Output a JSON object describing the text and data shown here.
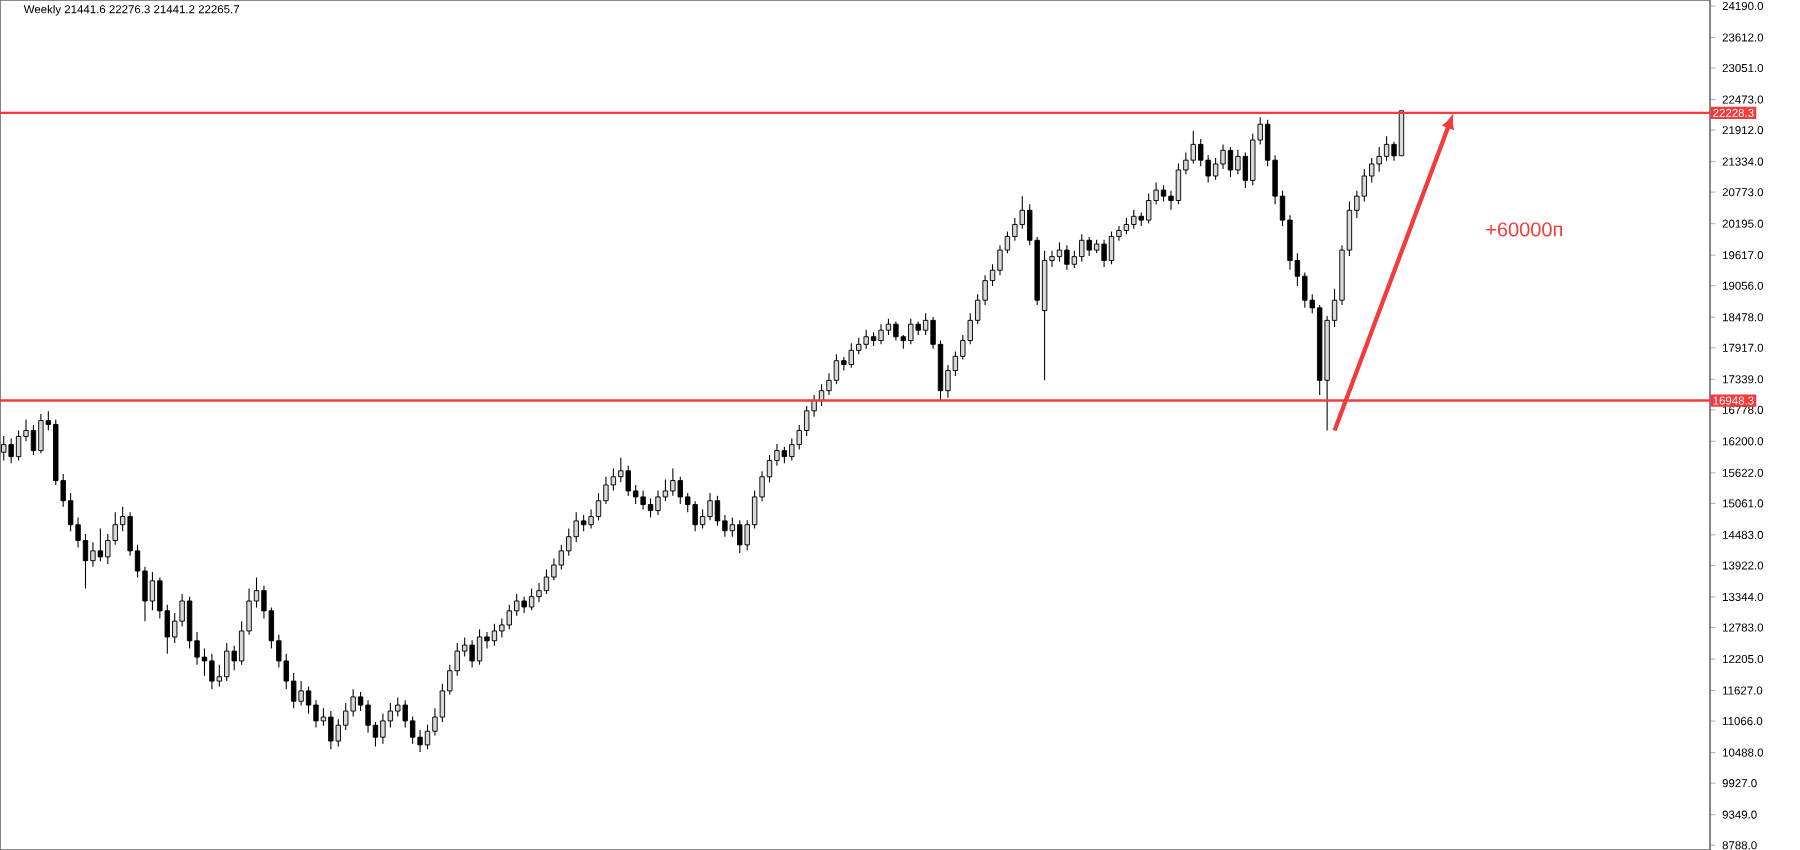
{
  "chart_data": {
    "type": "candlestick",
    "title": "Weekly 21441.6 22276.3 21441.2 22265.7",
    "categories": [
      null,
      null,
      null,
      null,
      null,
      null,
      null,
      null,
      null,
      null,
      null,
      null,
      null,
      null,
      null,
      null,
      null,
      null,
      null,
      null,
      null,
      null,
      null,
      null,
      null,
      null,
      null,
      null,
      null,
      null,
      null,
      null,
      null,
      null,
      null,
      null,
      null,
      null,
      null,
      null,
      null,
      null,
      null,
      null,
      null,
      null,
      null,
      null,
      null,
      null,
      null,
      null,
      null,
      null,
      null,
      null,
      null,
      null,
      null,
      null,
      null,
      null,
      null,
      null,
      null,
      null,
      null,
      null,
      null,
      null,
      null,
      null,
      null,
      null,
      null,
      null,
      null,
      null,
      null,
      null,
      null,
      null,
      null,
      null,
      null,
      null,
      null,
      null,
      null,
      null,
      null,
      null,
      null,
      null,
      null,
      null,
      null,
      null,
      null,
      null,
      null,
      null,
      null,
      null,
      null,
      null,
      null,
      null,
      null,
      null,
      null,
      null,
      null,
      null,
      null,
      null,
      null,
      null,
      null,
      null,
      null,
      null,
      null,
      null,
      null,
      null,
      null,
      null,
      null,
      null,
      null,
      null,
      null,
      null,
      null,
      null,
      null,
      null,
      null,
      null,
      null,
      null,
      null,
      null,
      null,
      null,
      null,
      null,
      null,
      null,
      null,
      null,
      null,
      null,
      null,
      null,
      null,
      null,
      null,
      null,
      null,
      null,
      null,
      null,
      null,
      null,
      null,
      null,
      null,
      null,
      null,
      null,
      null,
      null,
      null,
      null,
      null,
      null,
      null,
      null,
      null,
      null,
      null,
      null,
      null,
      null,
      null,
      null,
      null,
      null,
      null,
      null,
      null,
      null,
      null,
      null,
      null,
      null,
      null,
      null,
      null,
      null,
      null,
      null,
      null,
      null,
      null,
      null,
      null,
      null,
      null,
      null,
      null,
      null,
      null,
      null,
      null,
      null,
      null,
      null,
      null,
      null,
      null,
      null,
      null,
      null,
      null,
      null,
      null,
      null
    ],
    "ohlc": [
      [
        16000,
        16300,
        15850,
        16140
      ],
      [
        16140,
        16250,
        15800,
        15920
      ],
      [
        15920,
        16400,
        15850,
        16290
      ],
      [
        16290,
        16600,
        16200,
        16400
      ],
      [
        16400,
        16500,
        15950,
        16030
      ],
      [
        16030,
        16700,
        15980,
        16580
      ],
      [
        16580,
        16750,
        16400,
        16510
      ],
      [
        16510,
        16600,
        15400,
        15480
      ],
      [
        15480,
        15600,
        15000,
        15110
      ],
      [
        15110,
        15250,
        14550,
        14670
      ],
      [
        14670,
        14800,
        14250,
        14380
      ],
      [
        14380,
        14500,
        13500,
        14010
      ],
      [
        14010,
        14350,
        13900,
        14190
      ],
      [
        14190,
        14600,
        14000,
        14080
      ],
      [
        14080,
        14500,
        13950,
        14380
      ],
      [
        14380,
        14900,
        14300,
        14670
      ],
      [
        14670,
        15000,
        14550,
        14820
      ],
      [
        14820,
        14900,
        14100,
        14190
      ],
      [
        14190,
        14300,
        13700,
        13820
      ],
      [
        13820,
        13900,
        12900,
        13270
      ],
      [
        13270,
        13800,
        13100,
        13640
      ],
      [
        13640,
        13700,
        12950,
        13090
      ],
      [
        13090,
        13200,
        12300,
        12610
      ],
      [
        12610,
        13050,
        12500,
        12900
      ],
      [
        12900,
        13400,
        12800,
        13270
      ],
      [
        13270,
        13350,
        12400,
        12540
      ],
      [
        12540,
        12700,
        12100,
        12240
      ],
      [
        12240,
        12400,
        11900,
        12170
      ],
      [
        12170,
        12300,
        11650,
        11800
      ],
      [
        11800,
        12100,
        11700,
        11880
      ],
      [
        11880,
        12500,
        11800,
        12350
      ],
      [
        12350,
        12450,
        12000,
        12170
      ],
      [
        12170,
        12900,
        12100,
        12720
      ],
      [
        12720,
        13500,
        12650,
        13270
      ],
      [
        13270,
        13700,
        13150,
        13460
      ],
      [
        13460,
        13550,
        12950,
        13090
      ],
      [
        13090,
        13150,
        12400,
        12540
      ],
      [
        12540,
        12650,
        12050,
        12170
      ],
      [
        12170,
        12300,
        11650,
        11800
      ],
      [
        11800,
        11950,
        11300,
        11430
      ],
      [
        11430,
        11800,
        11350,
        11620
      ],
      [
        11620,
        11700,
        11200,
        11360
      ],
      [
        11360,
        11450,
        10950,
        11070
      ],
      [
        11070,
        11300,
        10980,
        11140
      ],
      [
        11140,
        11250,
        10550,
        10700
      ],
      [
        10700,
        11100,
        10600,
        10990
      ],
      [
        10990,
        11400,
        10900,
        11250
      ],
      [
        11250,
        11650,
        11150,
        11510
      ],
      [
        11510,
        11600,
        11250,
        11360
      ],
      [
        11360,
        11450,
        10850,
        10990
      ],
      [
        10990,
        11050,
        10600,
        10770
      ],
      [
        10770,
        11200,
        10650,
        11070
      ],
      [
        11070,
        11400,
        10950,
        11250
      ],
      [
        11250,
        11500,
        11150,
        11360
      ],
      [
        11360,
        11450,
        10950,
        11070
      ],
      [
        11070,
        11150,
        10650,
        10770
      ],
      [
        10770,
        10900,
        10500,
        10630
      ],
      [
        10630,
        11000,
        10550,
        10880
      ],
      [
        10880,
        11300,
        10800,
        11140
      ],
      [
        11140,
        11750,
        11050,
        11620
      ],
      [
        11620,
        12100,
        11550,
        11990
      ],
      [
        11990,
        12500,
        11900,
        12350
      ],
      [
        12350,
        12600,
        12250,
        12460
      ],
      [
        12460,
        12550,
        12050,
        12170
      ],
      [
        12170,
        12750,
        12100,
        12610
      ],
      [
        12610,
        12700,
        12400,
        12540
      ],
      [
        12540,
        12850,
        12450,
        12720
      ],
      [
        12720,
        12950,
        12600,
        12830
      ],
      [
        12830,
        13200,
        12750,
        13090
      ],
      [
        13090,
        13400,
        13000,
        13270
      ],
      [
        13270,
        13350,
        13050,
        13160
      ],
      [
        13160,
        13500,
        13100,
        13350
      ],
      [
        13350,
        13600,
        13250,
        13460
      ],
      [
        13460,
        13850,
        13400,
        13710
      ],
      [
        13710,
        14050,
        13650,
        13930
      ],
      [
        13930,
        14300,
        13850,
        14190
      ],
      [
        14190,
        14600,
        14100,
        14450
      ],
      [
        14450,
        14900,
        14350,
        14740
      ],
      [
        14740,
        14850,
        14550,
        14670
      ],
      [
        14670,
        14950,
        14600,
        14820
      ],
      [
        14820,
        15250,
        14750,
        15110
      ],
      [
        15110,
        15550,
        15050,
        15400
      ],
      [
        15400,
        15700,
        15300,
        15550
      ],
      [
        15550,
        15900,
        15450,
        15660
      ],
      [
        15660,
        15750,
        15200,
        15290
      ],
      [
        15290,
        15400,
        15050,
        15180
      ],
      [
        15180,
        15300,
        14950,
        15040
      ],
      [
        15040,
        15150,
        14800,
        14930
      ],
      [
        14930,
        15300,
        14850,
        15180
      ],
      [
        15180,
        15500,
        15100,
        15290
      ],
      [
        15290,
        15700,
        15200,
        15480
      ],
      [
        15480,
        15550,
        15050,
        15180
      ],
      [
        15180,
        15250,
        14900,
        15040
      ],
      [
        15040,
        15100,
        14550,
        14670
      ],
      [
        14670,
        14950,
        14600,
        14820
      ],
      [
        14820,
        15250,
        14750,
        15110
      ],
      [
        15110,
        15200,
        14650,
        14740
      ],
      [
        14740,
        14850,
        14450,
        14560
      ],
      [
        14560,
        14800,
        14450,
        14670
      ],
      [
        14670,
        14750,
        14150,
        14300
      ],
      [
        14300,
        14750,
        14200,
        14670
      ],
      [
        14670,
        15300,
        14600,
        15180
      ],
      [
        15180,
        15650,
        15100,
        15550
      ],
      [
        15550,
        15950,
        15450,
        15850
      ],
      [
        15850,
        16150,
        15750,
        16030
      ],
      [
        16030,
        16100,
        15800,
        15920
      ],
      [
        15920,
        16250,
        15850,
        16140
      ],
      [
        16140,
        16500,
        16050,
        16400
      ],
      [
        16400,
        16850,
        16300,
        16760
      ],
      [
        16760,
        17050,
        16650,
        16950
      ],
      [
        16950,
        17250,
        16850,
        17130
      ],
      [
        17130,
        17450,
        17050,
        17320
      ],
      [
        17320,
        17800,
        17250,
        17680
      ],
      [
        17680,
        17750,
        17500,
        17610
      ],
      [
        17610,
        18000,
        17550,
        17870
      ],
      [
        17870,
        18100,
        17800,
        17980
      ],
      [
        17980,
        18250,
        17900,
        18120
      ],
      [
        18120,
        18200,
        17950,
        18050
      ],
      [
        18050,
        18350,
        17980,
        18240
      ],
      [
        18240,
        18450,
        18150,
        18350
      ],
      [
        18350,
        18400,
        18050,
        18120
      ],
      [
        18120,
        18150,
        17900,
        18050
      ],
      [
        18050,
        18450,
        17980,
        18350
      ],
      [
        18350,
        18400,
        18150,
        18240
      ],
      [
        18240,
        18550,
        18150,
        18420
      ],
      [
        18420,
        18480,
        17900,
        17980
      ],
      [
        17980,
        18050,
        16950,
        17130
      ],
      [
        17130,
        17600,
        17000,
        17500
      ],
      [
        17500,
        17850,
        17400,
        17760
      ],
      [
        17760,
        18150,
        17700,
        18050
      ],
      [
        18050,
        18550,
        17980,
        18420
      ],
      [
        18420,
        18900,
        18350,
        18790
      ],
      [
        18790,
        19250,
        18700,
        19150
      ],
      [
        19150,
        19450,
        19050,
        19340
      ],
      [
        19340,
        19800,
        19250,
        19710
      ],
      [
        19710,
        20050,
        19650,
        19960
      ],
      [
        19960,
        20300,
        19880,
        20180
      ],
      [
        20180,
        20700,
        20100,
        20440
      ],
      [
        20440,
        20550,
        19800,
        19890
      ],
      [
        19890,
        19950,
        18700,
        18790
      ],
      [
        18600,
        19700,
        17320,
        19520
      ],
      [
        19520,
        19700,
        19400,
        19590
      ],
      [
        19590,
        19850,
        19500,
        19710
      ],
      [
        19710,
        19800,
        19350,
        19450
      ],
      [
        19450,
        19700,
        19380,
        19590
      ],
      [
        19590,
        20000,
        19500,
        19890
      ],
      [
        19890,
        19950,
        19600,
        19710
      ],
      [
        19710,
        19900,
        19650,
        19820
      ],
      [
        19820,
        19900,
        19400,
        19520
      ],
      [
        19520,
        20050,
        19450,
        19960
      ],
      [
        19960,
        20150,
        19880,
        20070
      ],
      [
        20070,
        20300,
        20000,
        20180
      ],
      [
        20180,
        20450,
        20100,
        20330
      ],
      [
        20330,
        20400,
        20150,
        20260
      ],
      [
        20260,
        20750,
        20200,
        20620
      ],
      [
        20620,
        20950,
        20550,
        20810
      ],
      [
        20810,
        20900,
        20600,
        20700
      ],
      [
        20700,
        20800,
        20450,
        20620
      ],
      [
        20620,
        21300,
        20550,
        21180
      ],
      [
        21180,
        21500,
        21100,
        21360
      ],
      [
        21360,
        21900,
        21300,
        21650
      ],
      [
        21650,
        21750,
        21250,
        21360
      ],
      [
        21360,
        21450,
        20950,
        21070
      ],
      [
        21070,
        21400,
        21000,
        21290
      ],
      [
        21290,
        21650,
        21200,
        21540
      ],
      [
        21540,
        21600,
        21050,
        21180
      ],
      [
        21180,
        21550,
        21100,
        21430
      ],
      [
        21430,
        21500,
        20850,
        20990
      ],
      [
        20990,
        21850,
        20900,
        21730
      ],
      [
        21730,
        22150,
        21650,
        22020
      ],
      [
        22020,
        22100,
        21250,
        21360
      ],
      [
        21360,
        21450,
        20550,
        20700
      ],
      [
        20700,
        20800,
        20150,
        20260
      ],
      [
        20260,
        20350,
        19350,
        19520
      ],
      [
        19520,
        19650,
        19050,
        19230
      ],
      [
        19230,
        19300,
        18650,
        18790
      ],
      [
        18790,
        18900,
        18550,
        18650
      ],
      [
        18650,
        18700,
        17050,
        17320
      ],
      [
        17320,
        18500,
        16400,
        18420
      ],
      [
        18420,
        19000,
        18300,
        18790
      ],
      [
        18790,
        19800,
        18700,
        19710
      ],
      [
        19710,
        20600,
        19600,
        20440
      ],
      [
        20440,
        20800,
        20300,
        20700
      ],
      [
        20700,
        21200,
        20600,
        21070
      ],
      [
        21070,
        21400,
        20950,
        21290
      ],
      [
        21290,
        21600,
        21150,
        21430
      ],
      [
        21430,
        21800,
        21350,
        21650
      ],
      [
        21650,
        21700,
        21350,
        21440
      ],
      [
        21441.6,
        22276.3,
        21441.2,
        22265.7
      ],
      null,
      null,
      null,
      null,
      null,
      null,
      null,
      null,
      null,
      null,
      null,
      null,
      null,
      null,
      null,
      null,
      null,
      null,
      null,
      null,
      null,
      null,
      null,
      null,
      null,
      null,
      null,
      null,
      null,
      null,
      null,
      null,
      null,
      null,
      null,
      null,
      null,
      null,
      null,
      null,
      null
    ],
    "ylim": [
      8700,
      24300
    ],
    "yticks": [
      {
        "value": 24190,
        "label": "24190.0"
      },
      {
        "value": 23612,
        "label": "23612.0"
      },
      {
        "value": 23051,
        "label": "23051.0"
      },
      {
        "value": 22473,
        "label": "22473.0"
      },
      {
        "value": 21912,
        "label": "21912.0"
      },
      {
        "value": 21334,
        "label": "21334.0"
      },
      {
        "value": 20773,
        "label": "20773.0"
      },
      {
        "value": 20195,
        "label": "20195.0"
      },
      {
        "value": 19617,
        "label": "19617.0"
      },
      {
        "value": 19056,
        "label": "19056.0"
      },
      {
        "value": 18478,
        "label": "18478.0"
      },
      {
        "value": 17917,
        "label": "17917.0"
      },
      {
        "value": 17339,
        "label": "17339.0"
      },
      {
        "value": 16778,
        "label": "16778.0"
      },
      {
        "value": 16200,
        "label": "16200.0"
      },
      {
        "value": 15622,
        "label": "15622.0"
      },
      {
        "value": 15061,
        "label": "15061.0"
      },
      {
        "value": 14483,
        "label": "14483.0"
      },
      {
        "value": 13922,
        "label": "13922.0"
      },
      {
        "value": 13344,
        "label": "13344.0"
      },
      {
        "value": 12783,
        "label": "12783.0"
      },
      {
        "value": 12205,
        "label": "12205.0"
      },
      {
        "value": 11627,
        "label": "11627.0"
      },
      {
        "value": 11066,
        "label": "11066.0"
      },
      {
        "value": 10488,
        "label": "10488.0"
      },
      {
        "value": 9927,
        "label": "9927.0"
      },
      {
        "value": 9349,
        "label": "9349.0"
      },
      {
        "value": 8788,
        "label": "8788.0"
      }
    ],
    "ref_lines": [
      {
        "axis": "y",
        "value": 22228.3,
        "label": "22228.3",
        "color": "#f03c3c"
      },
      {
        "axis": "y",
        "value": 16948.3,
        "label": "16948.3",
        "color": "#f03c3c"
      }
    ],
    "annotations": [
      "+60000п"
    ]
  }
}
